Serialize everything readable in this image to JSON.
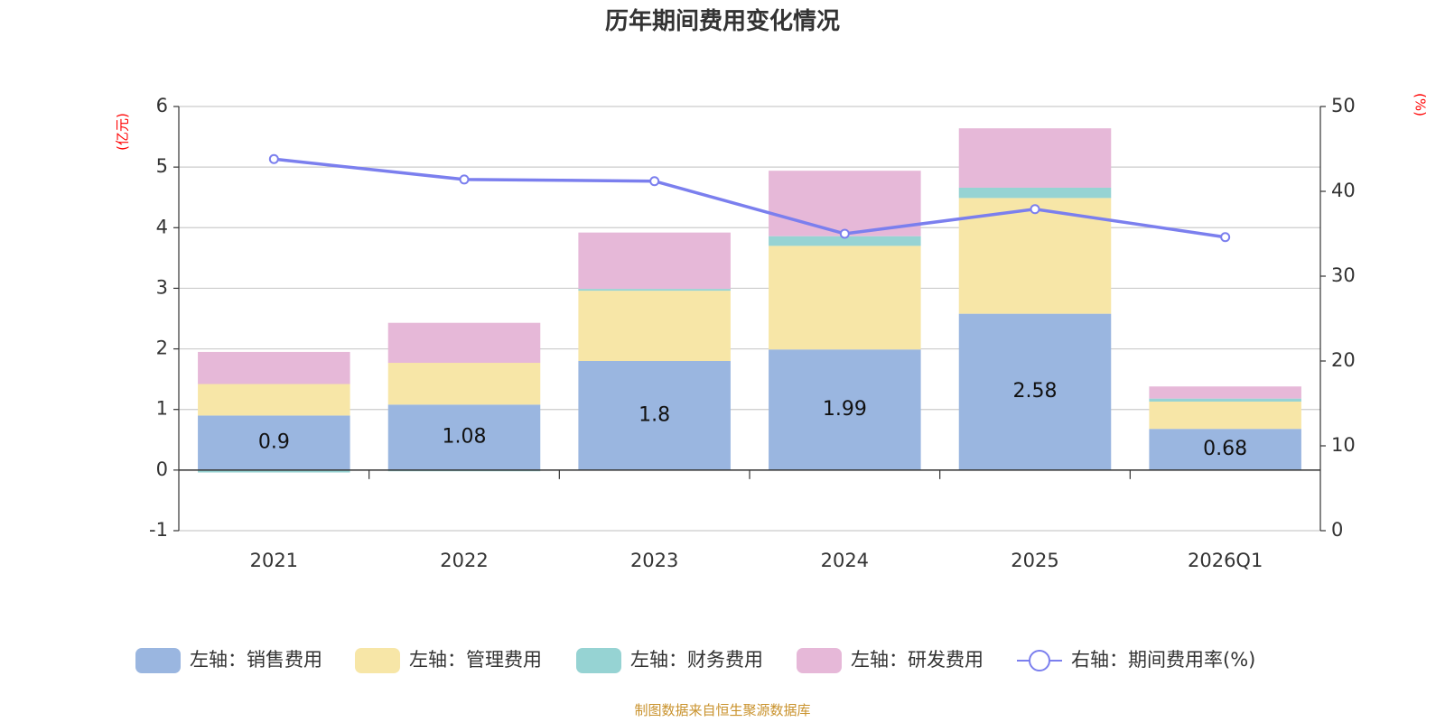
{
  "chart_data": {
    "type": "bar",
    "title": "历年期间费用变化情况",
    "categories": [
      "2021",
      "2022",
      "2023",
      "2024",
      "2025",
      "2026Q1"
    ],
    "left_axis": {
      "unit": "(亿元)",
      "ylim": [
        -1,
        6
      ],
      "ticks": [
        "-1",
        "0",
        "1",
        "2",
        "3",
        "4",
        "5",
        "6"
      ]
    },
    "right_axis": {
      "unit": "(%)",
      "ylim": [
        0,
        50
      ],
      "ticks": [
        "0",
        "10",
        "20",
        "30",
        "40",
        "50"
      ]
    },
    "series": [
      {
        "name": "左轴：销售费用",
        "axis": "left",
        "type": "bar",
        "color": "#9ab6e0",
        "values": [
          0.9,
          1.08,
          1.8,
          1.99,
          2.58,
          0.68
        ],
        "labels": [
          "0.9",
          "1.08",
          "1.8",
          "1.99",
          "2.58",
          "0.68"
        ]
      },
      {
        "name": "左轴：管理费用",
        "axis": "left",
        "type": "bar",
        "color": "#f7e6a7",
        "values": [
          0.52,
          0.69,
          1.16,
          1.71,
          1.91,
          0.45
        ]
      },
      {
        "name": "左轴：财务费用",
        "axis": "left",
        "type": "bar",
        "color": "#96d3d3",
        "values": [
          -0.04,
          -0.02,
          0.03,
          0.16,
          0.17,
          0.05
        ]
      },
      {
        "name": "左轴：研发费用",
        "axis": "left",
        "type": "bar",
        "color": "#e6b8d8",
        "values": [
          0.53,
          0.66,
          0.93,
          1.08,
          0.98,
          0.2
        ]
      },
      {
        "name": "右轴：期间费用率(%)",
        "axis": "right",
        "type": "line",
        "color": "#7b7fee",
        "values": [
          43.8,
          41.4,
          41.2,
          35.0,
          37.9,
          34.6
        ]
      }
    ],
    "legend_position": "bottom",
    "grid": true
  },
  "source": "制图数据来自恒生聚源数据库"
}
